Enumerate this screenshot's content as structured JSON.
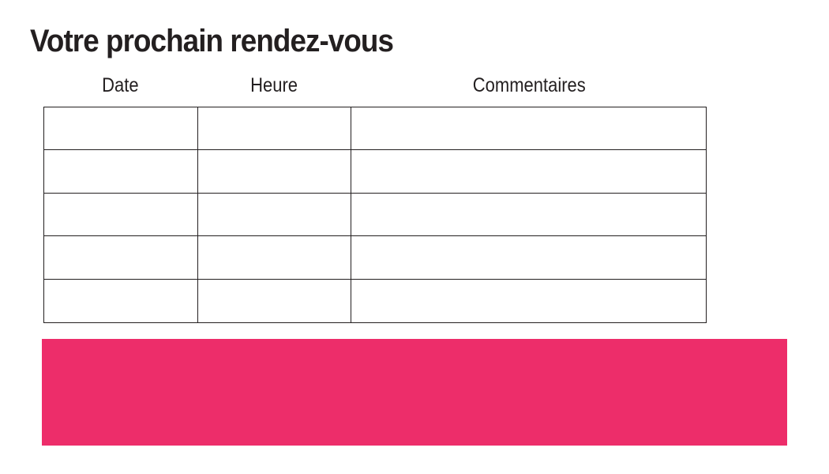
{
  "page": {
    "background": "#ffffff",
    "title": "Votre prochain rendez-vous",
    "title_color": "#231f20"
  },
  "table": {
    "border_color": "#231f20",
    "row_count": 5,
    "columns": [
      {
        "key": "date",
        "label": "Date"
      },
      {
        "key": "heure",
        "label": "Heure"
      },
      {
        "key": "commentaires",
        "label": "Commentaires"
      }
    ],
    "cells": [
      [
        "",
        "",
        ""
      ],
      [
        "",
        "",
        ""
      ],
      [
        "",
        "",
        ""
      ],
      [
        "",
        "",
        ""
      ],
      [
        "",
        "",
        ""
      ]
    ]
  },
  "banner": {
    "color": "#ED2D6A"
  }
}
